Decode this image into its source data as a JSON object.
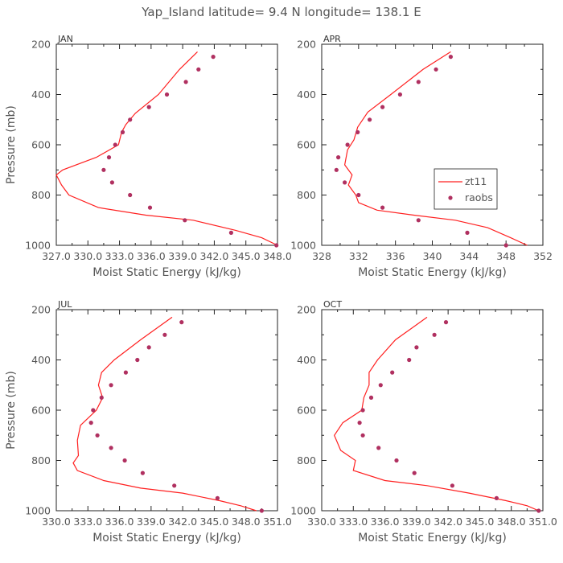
{
  "title": "Yap_Island  latitude= 9.4 N longitude= 138.1 E",
  "colors": {
    "model": "#ff2020",
    "obs": "#b03060",
    "frame": "#222222",
    "text": "#555555"
  },
  "legend": {
    "model_label": "zt11",
    "obs_label": "raobs"
  },
  "chart_data": [
    {
      "type": "line",
      "panel": "JAN",
      "xlabel": "Moist Static Energy (kJ/kg)",
      "ylabel": "Pressure (mb)",
      "xlim": [
        327.0,
        348.0
      ],
      "ylim": [
        1000,
        200
      ],
      "xticks": [
        327,
        330,
        333,
        336,
        339,
        342,
        345,
        348
      ],
      "xticklabels": [
        "327.0",
        "330.0",
        "333.0",
        "336.0",
        "339.0",
        "342.0",
        "345.0",
        "348.0"
      ],
      "yticks": [
        200,
        400,
        600,
        800,
        1000
      ],
      "series": [
        {
          "name": "zt11",
          "kind": "line",
          "points": [
            [
              340.4,
              230
            ],
            [
              338.7,
              300
            ],
            [
              336.7,
              400
            ],
            [
              334.5,
              475
            ],
            [
              333.6,
              520
            ],
            [
              333.2,
              550
            ],
            [
              332.9,
              600
            ],
            [
              330.8,
              650
            ],
            [
              327.6,
              700
            ],
            [
              327.0,
              720
            ],
            [
              327.5,
              760
            ],
            [
              328.2,
              800
            ],
            [
              331.0,
              850
            ],
            [
              335.5,
              880
            ],
            [
              340.0,
              900
            ],
            [
              344.0,
              940
            ],
            [
              346.5,
              970
            ],
            [
              348.0,
              1000
            ]
          ]
        },
        {
          "name": "raobs",
          "kind": "scatter",
          "points": [
            [
              341.9,
              250
            ],
            [
              340.5,
              300
            ],
            [
              339.3,
              350
            ],
            [
              337.5,
              400
            ],
            [
              335.8,
              450
            ],
            [
              334.0,
              500
            ],
            [
              333.3,
              550
            ],
            [
              332.6,
              600
            ],
            [
              332.0,
              650
            ],
            [
              331.5,
              700
            ],
            [
              332.3,
              750
            ],
            [
              334.0,
              800
            ],
            [
              335.9,
              850
            ],
            [
              339.2,
              900
            ],
            [
              343.6,
              950
            ],
            [
              347.9,
              1000
            ]
          ]
        }
      ]
    },
    {
      "type": "line",
      "panel": "APR",
      "xlabel": "Moist Static Energy (kJ/kg)",
      "ylabel": "Pressure (mb)",
      "xlim": [
        328,
        352
      ],
      "ylim": [
        1000,
        200
      ],
      "xticks": [
        328,
        332,
        336,
        340,
        344,
        348,
        352
      ],
      "xticklabels": [
        "328",
        "332",
        "336",
        "340",
        "344",
        "348",
        "352"
      ],
      "yticks": [
        200,
        400,
        600,
        800,
        1000
      ],
      "series": [
        {
          "name": "zt11",
          "kind": "line",
          "points": [
            [
              342.0,
              230
            ],
            [
              339.0,
              300
            ],
            [
              335.5,
              400
            ],
            [
              333.0,
              470
            ],
            [
              331.9,
              530
            ],
            [
              331.5,
              580
            ],
            [
              330.8,
              620
            ],
            [
              330.5,
              680
            ],
            [
              331.3,
              720
            ],
            [
              330.9,
              760
            ],
            [
              331.7,
              800
            ],
            [
              332.0,
              830
            ],
            [
              334.0,
              860
            ],
            [
              338.0,
              880
            ],
            [
              342.5,
              900
            ],
            [
              346.0,
              930
            ],
            [
              348.5,
              970
            ],
            [
              350.3,
              1000
            ]
          ]
        },
        {
          "name": "raobs",
          "kind": "scatter",
          "points": [
            [
              342.0,
              250
            ],
            [
              340.4,
              300
            ],
            [
              338.5,
              350
            ],
            [
              336.5,
              400
            ],
            [
              334.6,
              450
            ],
            [
              333.2,
              500
            ],
            [
              331.9,
              550
            ],
            [
              330.8,
              600
            ],
            [
              329.8,
              650
            ],
            [
              329.6,
              700
            ],
            [
              330.5,
              750
            ],
            [
              332.0,
              800
            ],
            [
              334.6,
              850
            ],
            [
              338.5,
              900
            ],
            [
              343.8,
              950
            ],
            [
              348.0,
              1000
            ]
          ]
        }
      ]
    },
    {
      "type": "line",
      "panel": "JUL",
      "xlabel": "Moist Static Energy (kJ/kg)",
      "ylabel": "Pressure (mb)",
      "xlim": [
        330.0,
        351.0
      ],
      "ylim": [
        1000,
        200
      ],
      "xticks": [
        330,
        333,
        336,
        339,
        342,
        345,
        348,
        351
      ],
      "xticklabels": [
        "330.0",
        "333.0",
        "336.0",
        "339.0",
        "342.0",
        "345.0",
        "348.0",
        "351.0"
      ],
      "yticks": [
        200,
        400,
        600,
        800,
        1000
      ],
      "series": [
        {
          "name": "zt11",
          "kind": "line",
          "points": [
            [
              341.0,
              230
            ],
            [
              338.0,
              320
            ],
            [
              335.5,
              400
            ],
            [
              334.3,
              450
            ],
            [
              334.0,
              500
            ],
            [
              334.4,
              550
            ],
            [
              333.8,
              600
            ],
            [
              332.3,
              660
            ],
            [
              332.0,
              720
            ],
            [
              332.1,
              780
            ],
            [
              331.6,
              810
            ],
            [
              332.0,
              840
            ],
            [
              334.5,
              880
            ],
            [
              338.0,
              910
            ],
            [
              342.0,
              930
            ],
            [
              345.5,
              960
            ],
            [
              347.5,
              980
            ],
            [
              349.0,
              1000
            ]
          ]
        },
        {
          "name": "raobs",
          "kind": "scatter",
          "points": [
            [
              341.9,
              250
            ],
            [
              340.3,
              300
            ],
            [
              338.8,
              350
            ],
            [
              337.7,
              400
            ],
            [
              336.6,
              450
            ],
            [
              335.2,
              500
            ],
            [
              334.3,
              550
            ],
            [
              333.5,
              600
            ],
            [
              333.3,
              650
            ],
            [
              333.9,
              700
            ],
            [
              335.2,
              750
            ],
            [
              336.5,
              800
            ],
            [
              338.2,
              850
            ],
            [
              341.2,
              900
            ],
            [
              345.3,
              950
            ],
            [
              349.5,
              1000
            ]
          ]
        }
      ]
    },
    {
      "type": "line",
      "panel": "OCT",
      "xlabel": "Moist Static Energy (kJ/kg)",
      "ylabel": "Pressure (mb)",
      "xlim": [
        330.0,
        351.0
      ],
      "ylim": [
        1000,
        200
      ],
      "xticks": [
        330,
        333,
        336,
        339,
        342,
        345,
        348,
        351
      ],
      "xticklabels": [
        "330.0",
        "333.0",
        "336.0",
        "339.0",
        "342.0",
        "345.0",
        "348.0",
        "351.0"
      ],
      "yticks": [
        200,
        400,
        600,
        800,
        1000
      ],
      "series": [
        {
          "name": "zt11",
          "kind": "line",
          "points": [
            [
              340.0,
              230
            ],
            [
              337.0,
              320
            ],
            [
              335.3,
              400
            ],
            [
              334.5,
              450
            ],
            [
              334.5,
              500
            ],
            [
              334.0,
              550
            ],
            [
              333.8,
              600
            ],
            [
              332.0,
              650
            ],
            [
              331.2,
              700
            ],
            [
              331.8,
              760
            ],
            [
              333.2,
              800
            ],
            [
              333.0,
              840
            ],
            [
              336.0,
              880
            ],
            [
              340.0,
              900
            ],
            [
              344.0,
              930
            ],
            [
              347.5,
              960
            ],
            [
              349.5,
              980
            ],
            [
              350.6,
              1000
            ]
          ]
        },
        {
          "name": "raobs",
          "kind": "scatter",
          "points": [
            [
              341.8,
              250
            ],
            [
              340.7,
              300
            ],
            [
              339.0,
              350
            ],
            [
              338.3,
              400
            ],
            [
              336.7,
              450
            ],
            [
              335.6,
              500
            ],
            [
              334.7,
              550
            ],
            [
              333.9,
              600
            ],
            [
              333.6,
              650
            ],
            [
              333.9,
              700
            ],
            [
              335.4,
              750
            ],
            [
              337.1,
              800
            ],
            [
              338.8,
              850
            ],
            [
              342.4,
              900
            ],
            [
              346.6,
              950
            ],
            [
              350.6,
              1000
            ]
          ]
        }
      ]
    }
  ]
}
